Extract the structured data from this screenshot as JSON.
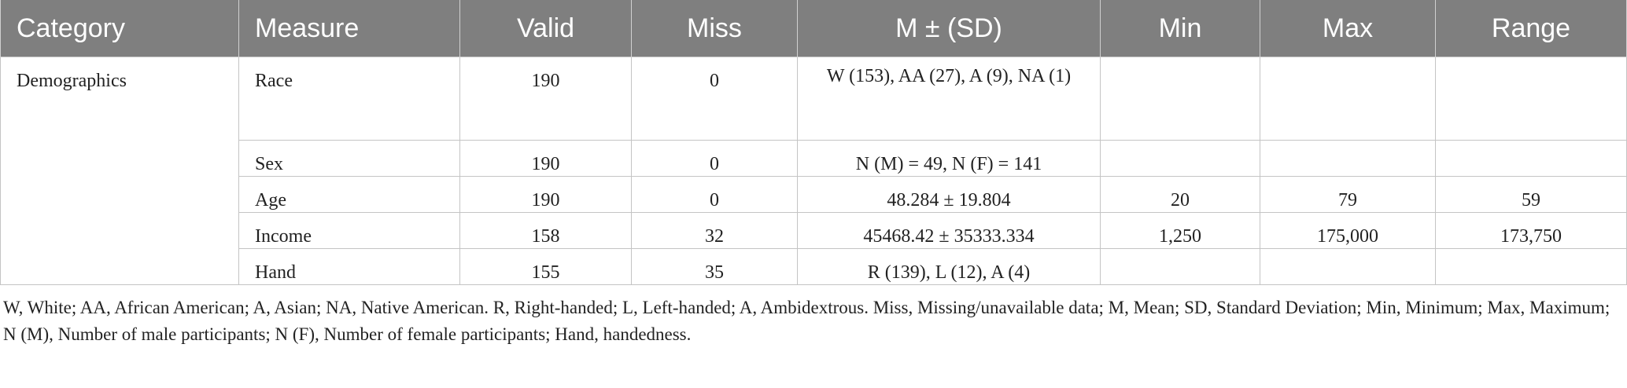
{
  "table": {
    "header": [
      "Category",
      "Measure",
      "Valid",
      "Miss",
      "M ± (SD)",
      "Min",
      "Max",
      "Range"
    ],
    "category": "Demographics",
    "rows": [
      [
        "Race",
        "190",
        "0",
        "W (153), AA (27), A (9), NA (1)",
        null,
        null,
        null
      ],
      [
        "Sex",
        "190",
        "0",
        "N (M) = 49, N (F) = 141",
        null,
        null,
        null
      ],
      [
        "Age",
        "190",
        "0",
        "48.284 ± 19.804",
        "20",
        "79",
        "59"
      ],
      [
        "Income",
        "158",
        "32",
        "45468.42 ± 35333.334",
        "1,250",
        "175,000",
        "173,750"
      ],
      [
        "Hand",
        "155",
        "35",
        "R (139), L (12), A (4)",
        null,
        null,
        null
      ]
    ]
  },
  "footnote": "W, White; AA, African American; A, Asian; NA, Native American. R, Right-handed; L, Left-handed; A, Ambidextrous. Miss, Missing/unavailable data; M, Mean; SD, Standard Deviation; Min, Minimum; Max, Maximum; N (M), Number of male participants; N (F), Number of female participants; Hand, handedness."
}
